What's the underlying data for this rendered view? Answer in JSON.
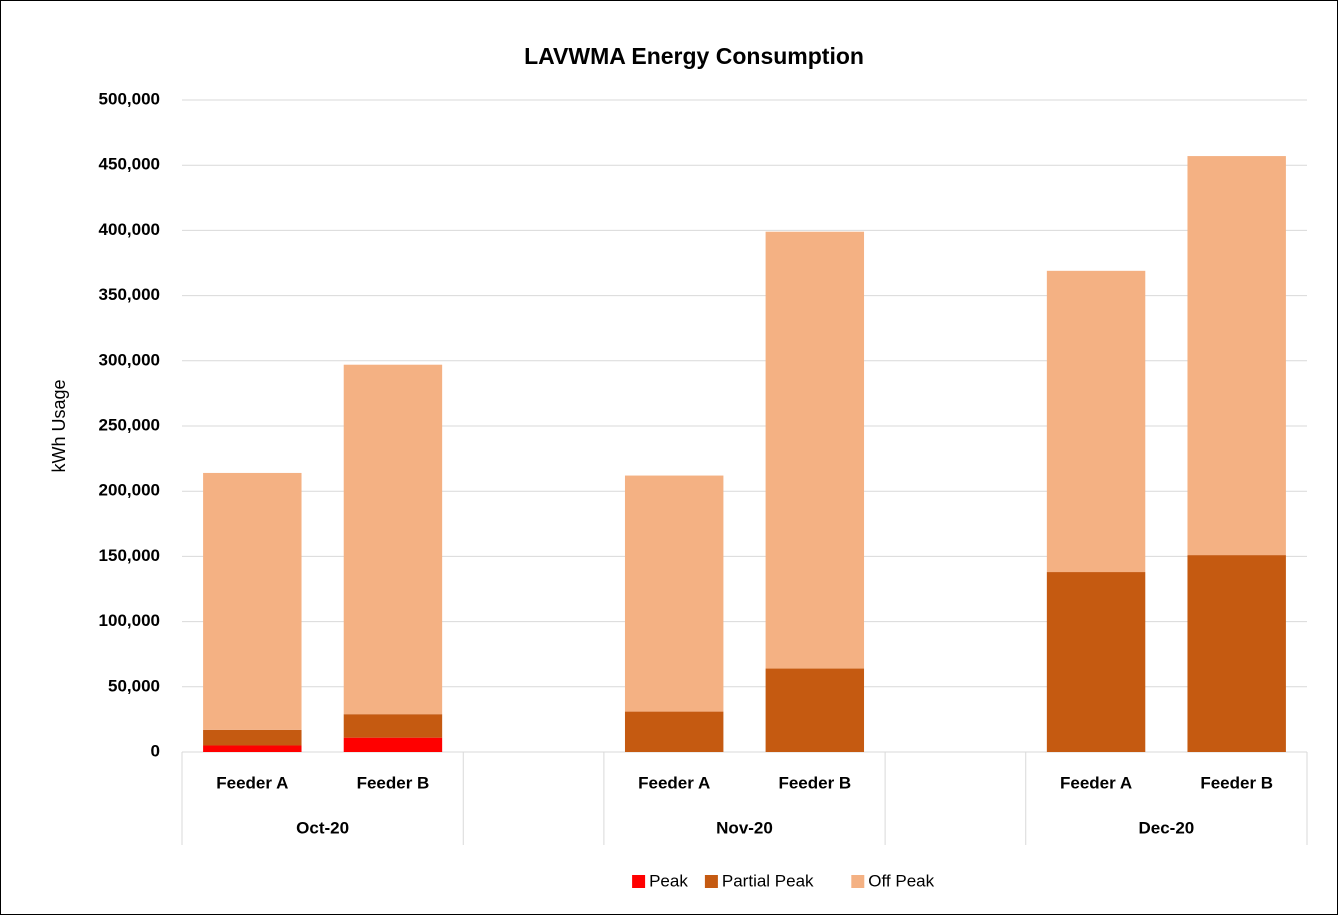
{
  "chart_data": {
    "type": "stacked_bar",
    "title": "LAVWMA Energy Consumption",
    "y_label": "kWh Usage",
    "categories": [
      "Feeder A",
      "Feeder B",
      null,
      "Feeder A",
      "Feeder B",
      null,
      "Feeder A",
      "Feeder B"
    ],
    "groups": [
      "Oct-20",
      "Nov-20",
      "Dec-20"
    ],
    "series": [
      {
        "name": "Peak",
        "color": "#ff0000",
        "values": [
          5000,
          11000,
          null,
          0,
          0,
          null,
          0,
          0
        ]
      },
      {
        "name": "Partial Peak",
        "color": "#c55a11",
        "values": [
          12000,
          18000,
          null,
          31000,
          64000,
          null,
          138000,
          151000
        ]
      },
      {
        "name": "Off Peak",
        "color": "#f4b183",
        "values": [
          197000,
          268000,
          null,
          181000,
          335000,
          null,
          231000,
          306000
        ]
      }
    ],
    "ylim": [
      0,
      500000
    ],
    "yticks": [
      0,
      {
        "value": 50000,
        "label": "50,000"
      },
      {
        "value": 100000,
        "label": "100,000"
      },
      {
        "value": 150000,
        "label": "150,000"
      },
      {
        "value": 200000,
        "label": "200,000"
      },
      {
        "value": 250000,
        "label": "250,000"
      },
      {
        "value": 300000,
        "label": "300,000"
      },
      {
        "value": 350000,
        "label": "350,000"
      },
      {
        "value": 400000,
        "label": "400,000"
      },
      {
        "value": 450000,
        "label": "450,000"
      },
      {
        "value": 500000,
        "label": "500,000"
      }
    ],
    "grid": true,
    "legend": "bottom"
  }
}
